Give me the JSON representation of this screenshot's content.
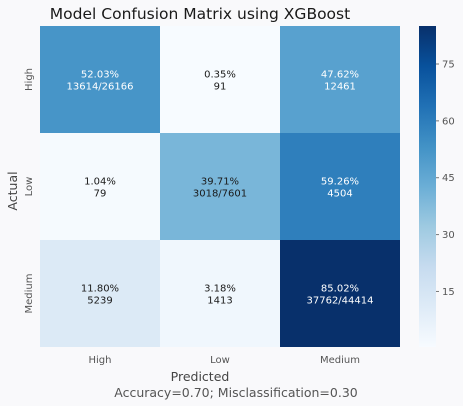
{
  "chart_data": {
    "type": "heatmap",
    "title": "Model Confusion Matrix using XGBoost",
    "xlabel": "Predicted",
    "ylabel": "Actual",
    "footer": "Accuracy=0.70; Misclassification=0.30",
    "x_categories": [
      "High",
      "Low",
      "Medium"
    ],
    "y_categories": [
      "High",
      "Low",
      "Medium"
    ],
    "percentages": [
      [
        52.03,
        0.35,
        47.62
      ],
      [
        1.04,
        39.71,
        59.26
      ],
      [
        11.8,
        3.18,
        85.02
      ]
    ],
    "cells": [
      [
        {
          "pct": "52.03%",
          "count": "13614/26166"
        },
        {
          "pct": "0.35%",
          "count": "91"
        },
        {
          "pct": "47.62%",
          "count": "12461"
        }
      ],
      [
        {
          "pct": "1.04%",
          "count": "79"
        },
        {
          "pct": "39.71%",
          "count": "3018/7601"
        },
        {
          "pct": "59.26%",
          "count": "4504"
        }
      ],
      [
        {
          "pct": "11.80%",
          "count": "5239"
        },
        {
          "pct": "3.18%",
          "count": "1413"
        },
        {
          "pct": "85.02%",
          "count": "37762/44414"
        }
      ]
    ],
    "colorbar": {
      "colormap": "Blues",
      "vmin": 0.35,
      "vmax": 85.02,
      "ticks": [
        15,
        30,
        45,
        60,
        75
      ],
      "tick_labels": [
        "15",
        "30",
        "45",
        "60",
        "75"
      ]
    },
    "colors": {
      "low": "#f7fbff",
      "high": "#08306b",
      "light_text": "#ffffff",
      "dark_text": "#1a1a1a"
    }
  }
}
